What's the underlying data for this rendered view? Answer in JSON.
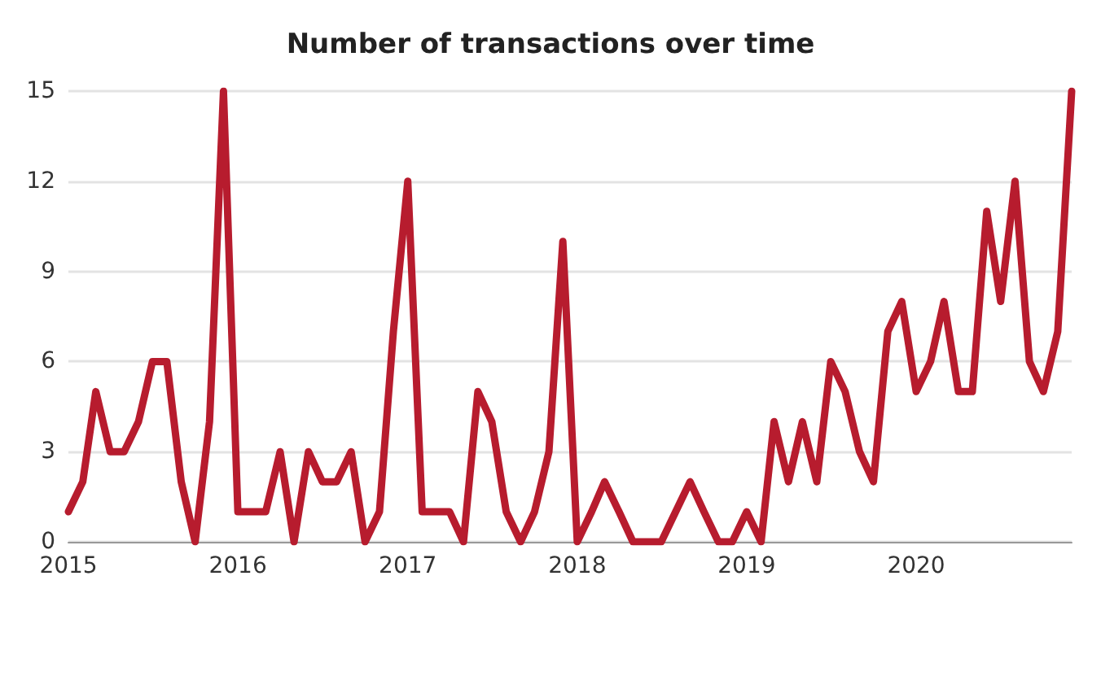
{
  "chart_data": {
    "type": "line",
    "title": "Number of transactions over time",
    "x": [
      "2015-01",
      "2015-02",
      "2015-03",
      "2015-04",
      "2015-05",
      "2015-06",
      "2015-07",
      "2015-08",
      "2015-09",
      "2015-10",
      "2015-11",
      "2015-12",
      "2016-01",
      "2016-02",
      "2016-03",
      "2016-04",
      "2016-05",
      "2016-06",
      "2016-07",
      "2016-08",
      "2016-09",
      "2016-10",
      "2016-11",
      "2016-12",
      "2017-01",
      "2017-02",
      "2017-03",
      "2017-04",
      "2017-05",
      "2017-06",
      "2017-07",
      "2017-08",
      "2017-09",
      "2017-10",
      "2017-11",
      "2017-12",
      "2018-01",
      "2018-02",
      "2018-03",
      "2018-04",
      "2018-05",
      "2018-06",
      "2018-07",
      "2018-08",
      "2018-09",
      "2018-10",
      "2018-11",
      "2018-12",
      "2019-01",
      "2019-02",
      "2019-03",
      "2019-04",
      "2019-05",
      "2019-06",
      "2019-07",
      "2019-08",
      "2019-09",
      "2019-10",
      "2019-11",
      "2019-12",
      "2020-01",
      "2020-02",
      "2020-03",
      "2020-04",
      "2020-05",
      "2020-06",
      "2020-07",
      "2020-08",
      "2020-09",
      "2020-10",
      "2020-11",
      "2020-12"
    ],
    "series": [
      {
        "color": "#b71c2e",
        "values": [
          1,
          2,
          5,
          3,
          3,
          4,
          6,
          6,
          2,
          0,
          4,
          15,
          1,
          1,
          1,
          3,
          0,
          3,
          2,
          2,
          3,
          0,
          1,
          7,
          12,
          1,
          1,
          1,
          0,
          5,
          4,
          1,
          0,
          1,
          3,
          10,
          0,
          1,
          2,
          1,
          0,
          0,
          0,
          1,
          2,
          1,
          0,
          0,
          1,
          0,
          4,
          2,
          4,
          2,
          6,
          5,
          3,
          2,
          7,
          8,
          5,
          6,
          8,
          5,
          5,
          11,
          8,
          12,
          6,
          5,
          7,
          15
        ]
      }
    ],
    "xlim": [
      "2015-01",
      "2020-12"
    ],
    "xticks": [
      "2015",
      "2016",
      "2017",
      "2018",
      "2019",
      "2020"
    ],
    "ylim": [
      0,
      15
    ],
    "yticks": [
      0,
      3,
      6,
      9,
      12,
      15
    ],
    "grid": "y",
    "marker": "none",
    "line_style": "solid"
  }
}
